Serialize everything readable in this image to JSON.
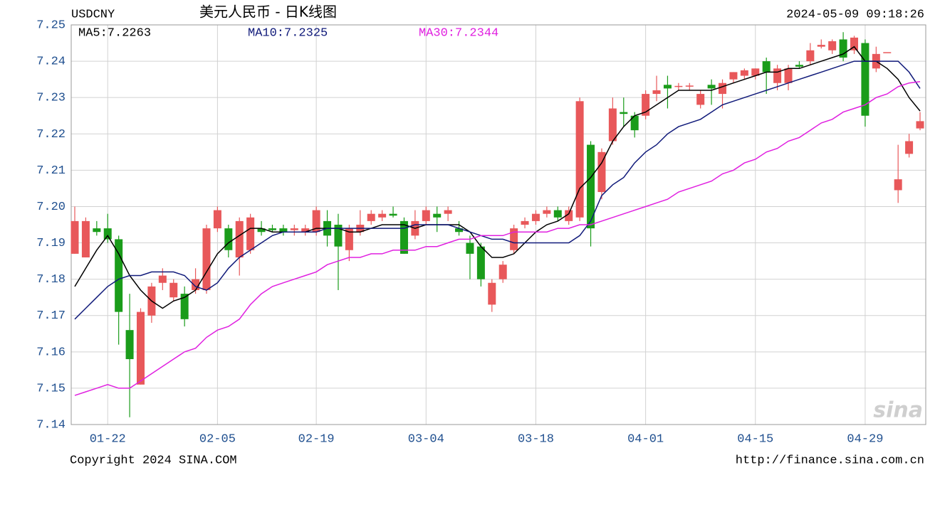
{
  "chart_data": {
    "type": "candlestick",
    "title": "USDCNY",
    "subtitle": "美元人民币 - 日K线图",
    "timestamp": "2024-05-09 09:18:26",
    "footer_left": "Copyright 2024 SINA.COM",
    "footer_right": "http://finance.sina.com.cn",
    "watermark": "sina",
    "up_color": "#e8585a",
    "down_color": "#1a9c1a",
    "grid": true,
    "ylim": [
      7.14,
      7.25
    ],
    "yticks": [
      7.14,
      7.15,
      7.16,
      7.17,
      7.18,
      7.19,
      {
        "value": 7.2,
        "label": "7.20"
      },
      7.21,
      7.22,
      7.23,
      7.24,
      7.25
    ],
    "categories": [
      null,
      null,
      null,
      "01-22",
      null,
      null,
      null,
      null,
      null,
      null,
      null,
      null,
      null,
      "02-05",
      null,
      null,
      null,
      null,
      null,
      null,
      null,
      null,
      "02-19",
      null,
      null,
      null,
      null,
      null,
      null,
      null,
      null,
      null,
      "03-04",
      null,
      null,
      null,
      null,
      null,
      null,
      null,
      null,
      null,
      "03-18",
      null,
      null,
      null,
      null,
      null,
      null,
      null,
      null,
      null,
      "04-01",
      null,
      null,
      null,
      null,
      null,
      null,
      null,
      null,
      null,
      "04-15",
      null,
      null,
      null,
      null,
      null,
      null,
      null,
      null,
      null,
      "04-29",
      null,
      null,
      null,
      null,
      null
    ],
    "open": [
      7.187,
      7.186,
      7.194,
      7.194,
      7.191,
      7.166,
      7.151,
      7.17,
      7.179,
      7.175,
      7.176,
      7.177,
      7.177,
      7.194,
      7.194,
      7.186,
      7.188,
      7.194,
      7.194,
      7.194,
      7.1935,
      7.193,
      7.193,
      7.196,
      7.195,
      7.188,
      7.193,
      7.196,
      7.197,
      7.198,
      7.196,
      7.192,
      7.196,
      7.198,
      7.198,
      7.194,
      7.19,
      7.189,
      7.173,
      7.18,
      7.188,
      7.195,
      7.196,
      7.198,
      7.199,
      7.196,
      7.197,
      7.217,
      7.204,
      7.218,
      7.226,
      7.225,
      7.225,
      7.231,
      7.2335,
      7.233,
      7.233,
      7.228,
      7.2335,
      7.231,
      7.235,
      7.236,
      7.236,
      7.24,
      7.234,
      7.234,
      7.239,
      7.24,
      7.244,
      7.243,
      7.246,
      7.243,
      7.245,
      7.238,
      7.2425,
      7.2045,
      7.2145,
      7.2215
    ],
    "high": [
      7.2,
      7.197,
      7.196,
      7.198,
      7.192,
      7.176,
      7.172,
      7.179,
      7.183,
      7.18,
      7.178,
      7.183,
      7.195,
      7.2,
      7.195,
      7.197,
      7.198,
      7.196,
      7.195,
      7.195,
      7.195,
      7.195,
      7.2,
      7.199,
      7.198,
      7.195,
      7.199,
      7.199,
      7.199,
      7.2,
      7.197,
      7.199,
      7.2,
      7.2,
      7.2,
      7.196,
      7.192,
      7.19,
      7.18,
      7.185,
      7.195,
      7.197,
      7.199,
      7.2,
      7.2,
      7.2,
      7.23,
      7.218,
      7.216,
      7.23,
      7.23,
      7.226,
      7.232,
      7.236,
      7.236,
      7.234,
      7.234,
      7.232,
      7.235,
      7.235,
      7.237,
      7.238,
      7.238,
      7.241,
      7.239,
      7.239,
      7.24,
      7.245,
      7.246,
      7.246,
      7.248,
      7.247,
      7.246,
      7.244,
      7.2425,
      7.217,
      7.22,
      7.226
    ],
    "low": [
      7.187,
      7.186,
      7.192,
      7.19,
      7.162,
      7.142,
      7.151,
      7.168,
      7.177,
      7.174,
      7.167,
      7.176,
      7.176,
      7.193,
      7.186,
      7.181,
      7.187,
      7.192,
      7.193,
      7.192,
      7.192,
      7.192,
      7.192,
      7.189,
      7.177,
      7.185,
      7.192,
      7.195,
      7.196,
      7.197,
      7.187,
      7.191,
      7.195,
      7.193,
      7.196,
      7.192,
      7.18,
      7.178,
      7.171,
      7.179,
      7.187,
      7.194,
      7.195,
      7.197,
      7.196,
      7.195,
      7.196,
      7.189,
      7.202,
      7.217,
      7.222,
      7.219,
      7.224,
      7.229,
      7.227,
      7.232,
      7.232,
      7.227,
      7.228,
      7.227,
      7.234,
      7.235,
      7.235,
      7.231,
      7.232,
      7.232,
      7.238,
      7.239,
      7.2435,
      7.242,
      7.24,
      7.242,
      7.222,
      7.237,
      7.2425,
      7.201,
      7.2135,
      7.221
    ],
    "close": [
      7.196,
      7.196,
      7.193,
      7.191,
      7.171,
      7.158,
      7.171,
      7.178,
      7.181,
      7.179,
      7.169,
      7.18,
      7.194,
      7.199,
      7.188,
      7.196,
      7.197,
      7.193,
      7.1935,
      7.193,
      7.194,
      7.194,
      7.199,
      7.192,
      7.189,
      7.194,
      7.195,
      7.198,
      7.198,
      7.1975,
      7.187,
      7.196,
      7.199,
      7.197,
      7.199,
      7.193,
      7.187,
      7.18,
      7.179,
      7.184,
      7.194,
      7.196,
      7.198,
      7.199,
      7.197,
      7.199,
      7.229,
      7.194,
      7.215,
      7.227,
      7.2255,
      7.221,
      7.231,
      7.232,
      7.2325,
      7.2332,
      7.2333,
      7.231,
      7.2325,
      7.234,
      7.237,
      7.2375,
      7.238,
      7.237,
      7.238,
      7.238,
      7.2385,
      7.243,
      7.2445,
      7.2455,
      7.241,
      7.2465,
      7.225,
      7.242,
      7.2425,
      7.2075,
      7.218,
      7.2235
    ],
    "series": [
      {
        "name": "MA5:7.2263",
        "color": "#000000",
        "values": [
          7.178,
          7.183,
          7.188,
          7.192,
          7.187,
          7.181,
          7.177,
          7.174,
          7.172,
          7.174,
          7.175,
          7.177,
          7.182,
          7.187,
          7.19,
          7.192,
          7.194,
          7.194,
          7.193,
          7.193,
          7.193,
          7.193,
          7.194,
          7.194,
          7.194,
          7.193,
          7.193,
          7.194,
          7.195,
          7.195,
          7.195,
          7.194,
          7.195,
          7.195,
          7.195,
          7.195,
          7.193,
          7.189,
          7.186,
          7.186,
          7.187,
          7.19,
          7.193,
          7.195,
          7.196,
          7.198,
          7.205,
          7.208,
          7.212,
          7.218,
          7.222,
          7.225,
          7.226,
          7.228,
          7.23,
          7.232,
          7.232,
          7.232,
          7.232,
          7.233,
          7.234,
          7.235,
          7.236,
          7.237,
          7.237,
          7.238,
          7.238,
          7.239,
          7.24,
          7.241,
          7.242,
          7.244,
          7.24,
          7.24,
          7.238,
          7.235,
          7.23,
          7.2263
        ]
      },
      {
        "name": "MA10:7.2325",
        "color": "#101a7a",
        "values": [
          7.169,
          7.172,
          7.175,
          7.178,
          7.18,
          7.181,
          7.181,
          7.182,
          7.182,
          7.182,
          7.181,
          7.178,
          7.177,
          7.179,
          7.183,
          7.186,
          7.188,
          7.19,
          7.192,
          7.193,
          7.193,
          7.193,
          7.193,
          7.194,
          7.194,
          7.194,
          7.194,
          7.194,
          7.194,
          7.194,
          7.194,
          7.195,
          7.195,
          7.195,
          7.195,
          7.194,
          7.193,
          7.192,
          7.191,
          7.191,
          7.19,
          7.19,
          7.19,
          7.19,
          7.19,
          7.19,
          7.192,
          7.196,
          7.203,
          7.206,
          7.208,
          7.212,
          7.215,
          7.217,
          7.22,
          7.222,
          7.223,
          7.224,
          7.226,
          7.228,
          7.229,
          7.23,
          7.231,
          7.232,
          7.233,
          7.234,
          7.235,
          7.236,
          7.237,
          7.238,
          7.239,
          7.24,
          7.24,
          7.24,
          7.24,
          7.24,
          7.237,
          7.2325
        ]
      },
      {
        "name": "MA30:7.2344",
        "color": "#e020e0",
        "values": [
          7.148,
          7.149,
          7.15,
          7.151,
          7.15,
          7.15,
          7.152,
          7.154,
          7.156,
          7.158,
          7.16,
          7.161,
          7.164,
          7.166,
          7.167,
          7.169,
          7.173,
          7.176,
          7.178,
          7.179,
          7.18,
          7.181,
          7.182,
          7.184,
          7.185,
          7.186,
          7.186,
          7.187,
          7.187,
          7.188,
          7.188,
          7.188,
          7.189,
          7.189,
          7.19,
          7.191,
          7.191,
          7.192,
          7.192,
          7.192,
          7.193,
          7.193,
          7.193,
          7.193,
          7.194,
          7.194,
          7.195,
          7.195,
          7.196,
          7.197,
          7.198,
          7.199,
          7.2,
          7.201,
          7.202,
          7.204,
          7.205,
          7.206,
          7.207,
          7.209,
          7.21,
          7.212,
          7.213,
          7.215,
          7.216,
          7.218,
          7.219,
          7.221,
          7.223,
          7.224,
          7.226,
          7.227,
          7.228,
          7.23,
          7.231,
          7.233,
          7.234,
          7.2344
        ]
      }
    ]
  }
}
